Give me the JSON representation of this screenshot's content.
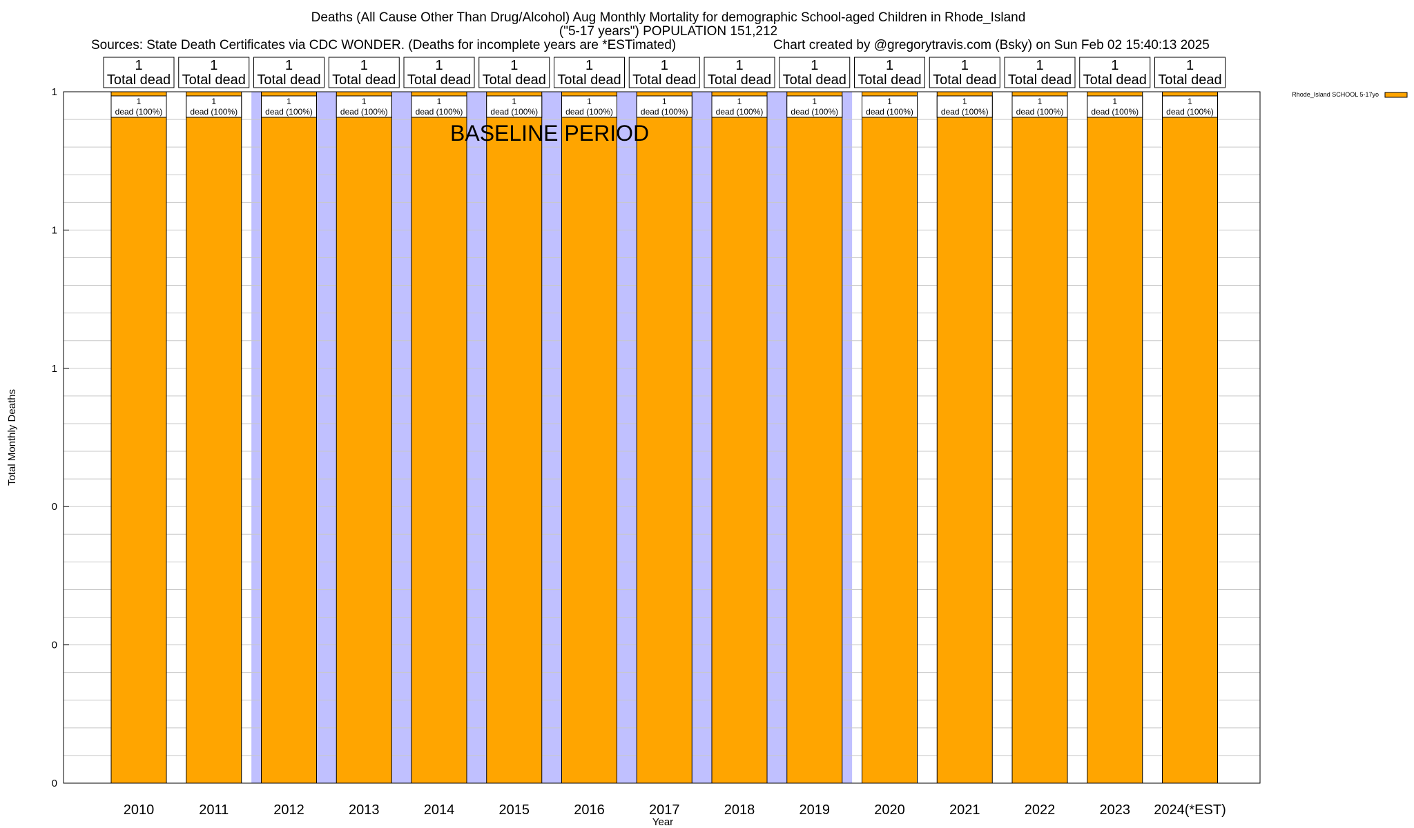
{
  "header": {
    "title_line1": "Deaths (All Cause Other Than Drug/Alcohol) Aug Monthly Mortality for demographic School-aged Children in Rhode_Island",
    "title_line2": "(\"5-17 years\") POPULATION 151,212",
    "sources": "Sources: State Death Certificates via CDC WONDER. (Deaths for incomplete years are *ESTimated)",
    "credit": "Chart created by @gregorytravis.com (Bsky) on Sun Feb 02 15:40:13 2025"
  },
  "chart_data": {
    "type": "bar",
    "xlabel": "Year",
    "ylabel": "Total Monthly Deaths",
    "categories": [
      "2010",
      "2011",
      "2012",
      "2013",
      "2014",
      "2015",
      "2016",
      "2017",
      "2018",
      "2019",
      "2020",
      "2021",
      "2022",
      "2023",
      "2024(*EST)"
    ],
    "series": [
      {
        "name": "Rhode_Island SCHOOL 5-17yo",
        "color": "#FFA500",
        "values": [
          1,
          1,
          1,
          1,
          1,
          1,
          1,
          1,
          1,
          1,
          1,
          1,
          1,
          1,
          1
        ]
      }
    ],
    "total_labels": {
      "count": [
        "1",
        "1",
        "1",
        "1",
        "1",
        "1",
        "1",
        "1",
        "1",
        "1",
        "1",
        "1",
        "1",
        "1",
        "1"
      ],
      "text": "Total dead"
    },
    "bar_labels": {
      "count": [
        "1",
        "1",
        "1",
        "1",
        "1",
        "1",
        "1",
        "1",
        "1",
        "1",
        "1",
        "1",
        "1",
        "1",
        "1"
      ],
      "text": "dead (100%)"
    },
    "yticks": {
      "labels": [
        "0",
        "0",
        "0",
        "1",
        "1",
        "1"
      ],
      "values": [
        0,
        0.2,
        0.4,
        0.6,
        0.8,
        1.0
      ]
    },
    "ylim": [
      0,
      1
    ],
    "baseline": {
      "label": "BASELINE PERIOD",
      "categories": [
        "2012",
        "2013",
        "2014",
        "2015",
        "2016",
        "2017",
        "2018",
        "2019"
      ],
      "color": "#C0C0FF"
    },
    "grid": true,
    "legend_position": "top-right"
  }
}
